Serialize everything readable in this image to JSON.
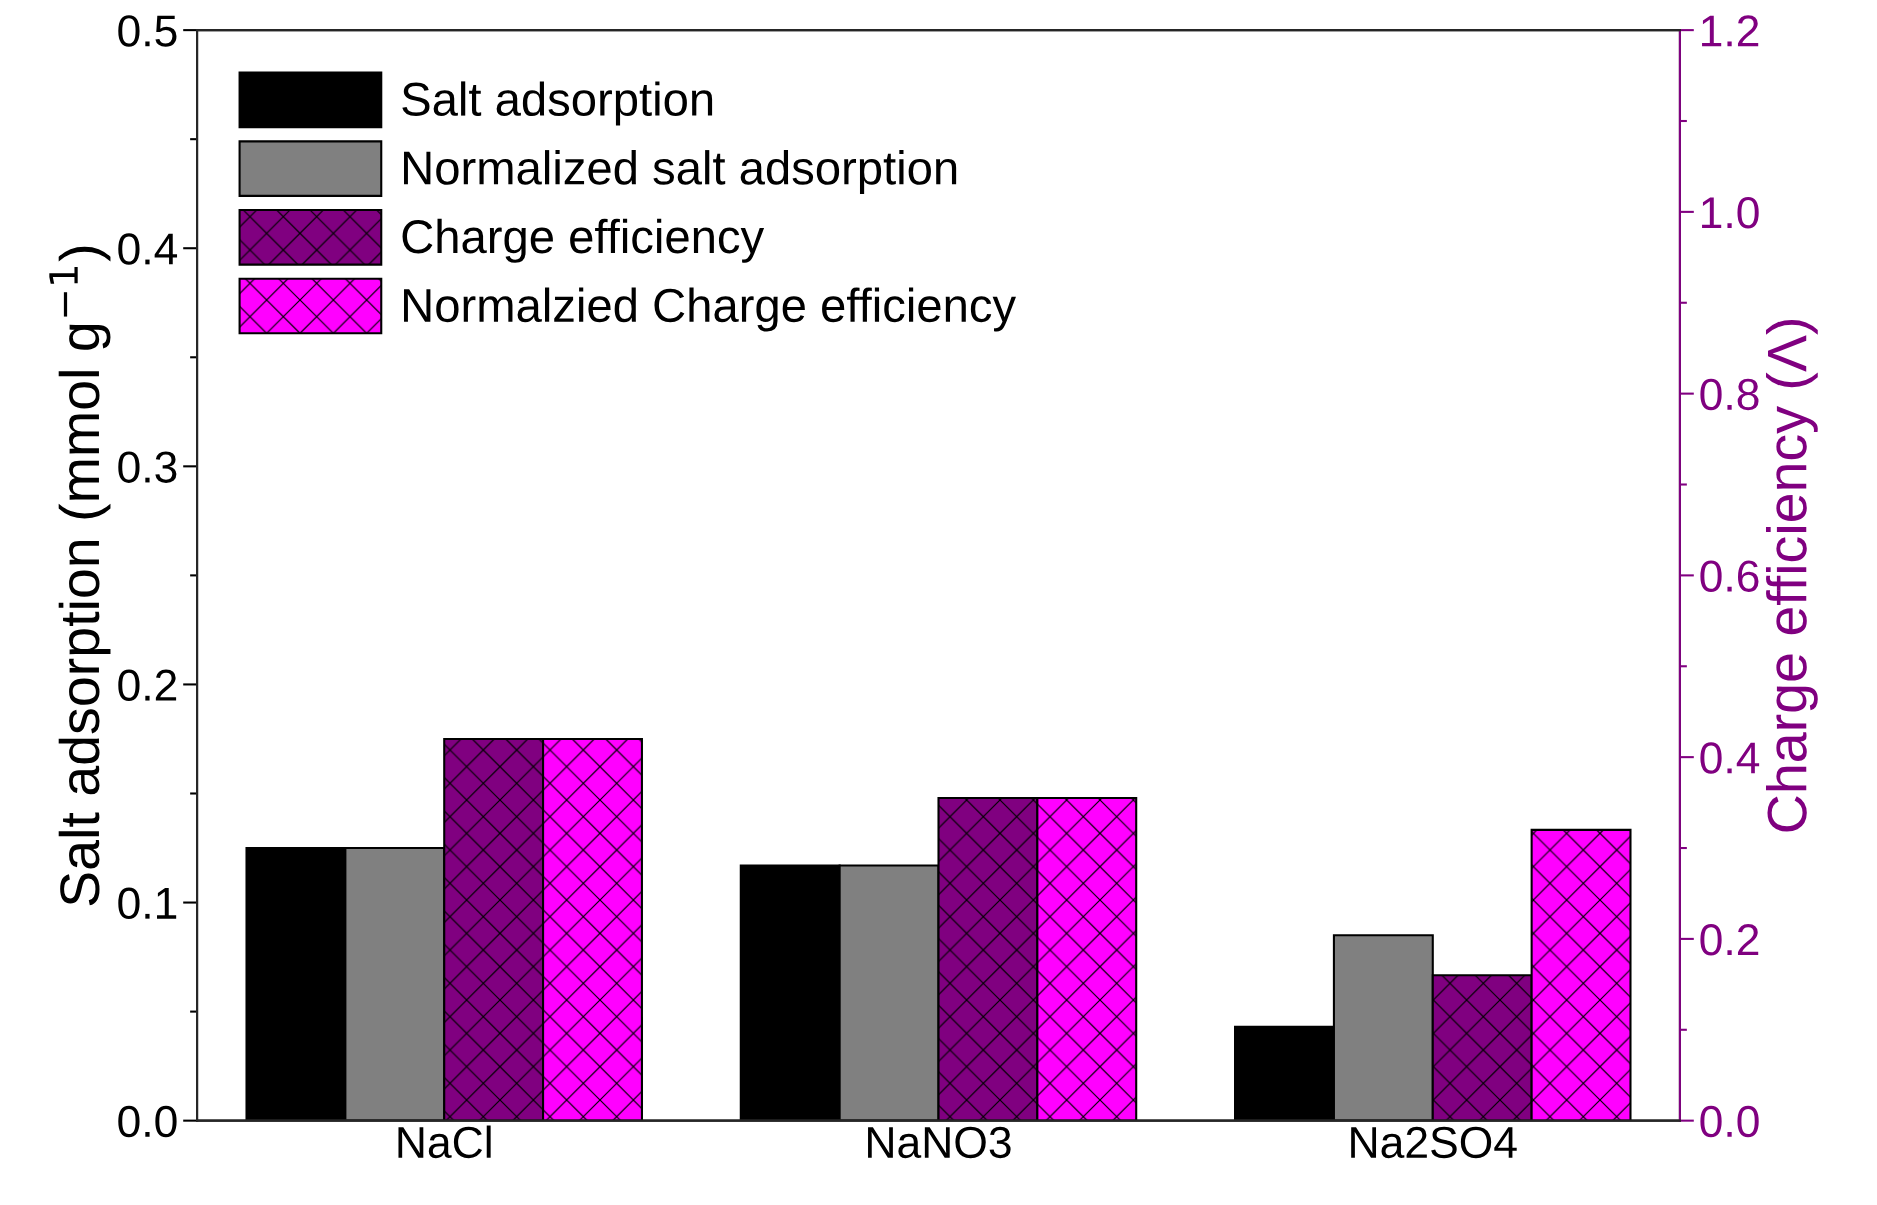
{
  "chart_data": {
    "type": "bar",
    "categories": [
      "NaCl",
      "NaNO3",
      "Na2SO4"
    ],
    "ylabel": "Salt adsorption (mmol g$^{−1}$)",
    "y2label": "Charge efficiency (Λ)",
    "ylim": [
      0,
      0.5
    ],
    "yticks": [
      {
        "value": 0,
        "label": "0.0"
      },
      0.1,
      0.2,
      0.3,
      0.4,
      0.5
    ],
    "y2lim": [
      0,
      1.2
    ],
    "y2ticks": [
      {
        "value": 0,
        "label": "0.0"
      },
      0.2,
      0.4,
      0.6,
      0.8,
      {
        "value": 1,
        "label": "1.0"
      },
      1.2
    ],
    "legend": "top left",
    "grid": false,
    "series": [
      {
        "name": "Salt adsorption",
        "color": "#000000",
        "values": [
          0.125,
          0.117,
          0.043
        ]
      },
      {
        "name": "Normalized salt adsorption",
        "color": "#808080",
        "values": [
          0.125,
          0.117,
          0.085
        ]
      },
      {
        "name": "Charge efficiency",
        "color": "#800080",
        "axis": "y2",
        "values": [
          0.42,
          0.355,
          0.16
        ]
      },
      {
        "name": "Normalzied Charge efficiency",
        "color": "#ff00ff",
        "axis": "y2",
        "values": [
          0.42,
          0.355,
          0.32
        ]
      }
    ]
  }
}
